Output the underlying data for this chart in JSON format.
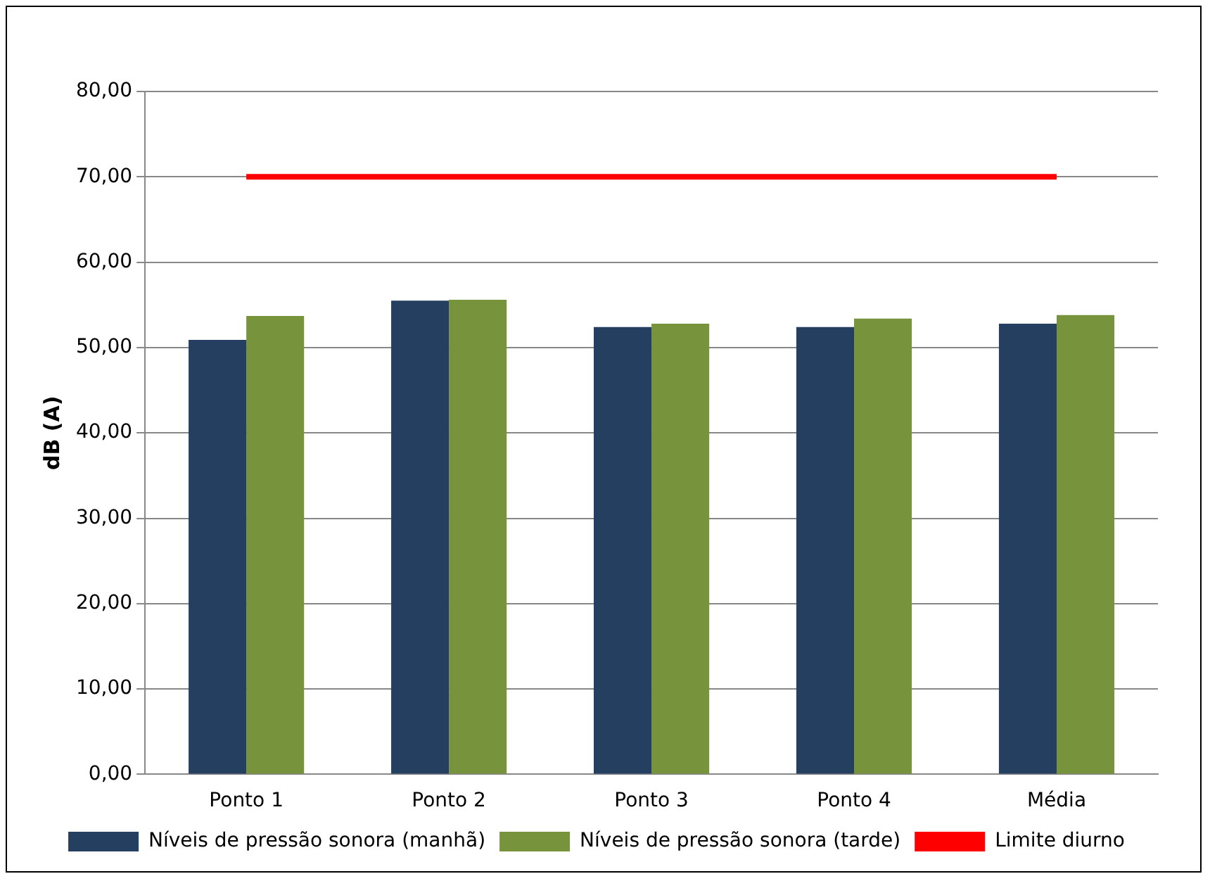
{
  "chart_data": {
    "type": "bar",
    "ylabel": "dB (A)",
    "categories": [
      "Ponto 1",
      "Ponto 2",
      "Ponto 3",
      "Ponto 4",
      "Média"
    ],
    "series": [
      {
        "name": "Níveis de pressão sonora (manhã)",
        "color": "#243f60",
        "values": [
          50.9,
          55.5,
          52.4,
          52.4,
          52.8
        ]
      },
      {
        "name": "Níveis de pressão sonora (tarde)",
        "color": "#77933c",
        "values": [
          53.7,
          55.6,
          52.8,
          53.4,
          53.8
        ]
      },
      {
        "name": "Limite diurno",
        "type": "line",
        "color": "#ff0000",
        "values": [
          70,
          70,
          70,
          70,
          70
        ],
        "marker": "none"
      }
    ],
    "ylim": [
      0,
      80
    ],
    "yticks": [
      {
        "value": 0,
        "label": "0,00"
      },
      {
        "value": 10,
        "label": "10,00"
      },
      {
        "value": 20,
        "label": "20,00"
      },
      {
        "value": 30,
        "label": "30,00"
      },
      {
        "value": 40,
        "label": "40,00"
      },
      {
        "value": 50,
        "label": "50,00"
      },
      {
        "value": 60,
        "label": "60,00"
      },
      {
        "value": 70,
        "label": "70,00"
      },
      {
        "value": 80,
        "label": "80,00"
      }
    ],
    "grid": "y",
    "legend": "bottom"
  }
}
